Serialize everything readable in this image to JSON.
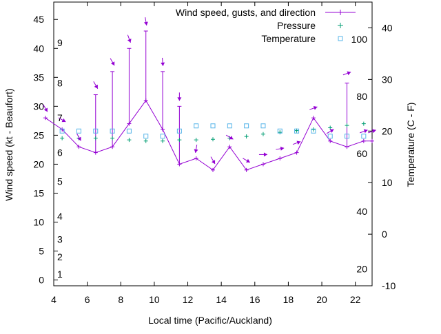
{
  "chart_data": {
    "type": "line",
    "xlabel": "Local time (Pacific/Auckland)",
    "ylabel": "Wind speed (kt - Beaufort)",
    "y2label": "Temperature (C - F)",
    "xlim": [
      4,
      23
    ],
    "ylim": [
      -1,
      48
    ],
    "y2lim": [
      -10,
      45
    ],
    "x_ticks": [
      4,
      6,
      8,
      10,
      12,
      14,
      16,
      18,
      20,
      22
    ],
    "y_ticks": [
      0,
      5,
      10,
      15,
      20,
      25,
      30,
      35,
      40,
      45
    ],
    "y2_ticks": [
      -10,
      0,
      10,
      20,
      30,
      40
    ],
    "beaufort_labels": [
      {
        "label": "1",
        "at_kt": 1
      },
      {
        "label": "2",
        "at_kt": 4
      },
      {
        "label": "3",
        "at_kt": 7
      },
      {
        "label": "4",
        "at_kt": 11
      },
      {
        "label": "5",
        "at_kt": 17
      },
      {
        "label": "6",
        "at_kt": 22
      },
      {
        "label": "7",
        "at_kt": 28
      },
      {
        "label": "8",
        "at_kt": 34
      },
      {
        "label": "9",
        "at_kt": 41
      }
    ],
    "fahrenheit_labels": [
      {
        "label": "20",
        "at_c": -6.7
      },
      {
        "label": "40",
        "at_c": 4.4
      },
      {
        "label": "60",
        "at_c": 15.6
      },
      {
        "label": "80",
        "at_c": 26.7
      },
      {
        "label": "100",
        "at_c": 37.8
      }
    ],
    "legend": {
      "position": "top-right",
      "entries": [
        "Wind speed, gusts, and direction",
        "Pressure",
        "Temperature"
      ]
    },
    "colors": {
      "wind": "#9400d3",
      "pressure": "#009e73",
      "temperature": "#56b4e9",
      "axis": "#000000"
    },
    "series": [
      {
        "name": "Wind speed, gusts, and direction",
        "x": [
          3.5,
          4.5,
          5.5,
          6.5,
          7.5,
          8.5,
          9.5,
          10.5,
          11.5,
          12.5,
          13.5,
          14.5,
          15.5,
          16.5,
          17.5,
          18.5,
          19.5,
          20.5,
          21.5,
          22.5,
          23
        ],
        "speed": [
          28,
          26,
          23,
          22,
          23,
          27,
          31,
          26,
          20,
          21,
          19,
          23,
          19,
          20,
          21,
          22,
          28,
          24,
          23,
          24,
          24
        ],
        "gust": [
          28,
          26,
          23,
          32,
          36,
          40,
          43,
          36,
          30,
          21,
          19,
          23,
          19,
          20,
          21,
          22,
          28,
          24,
          34,
          24,
          24
        ],
        "direction_deg": [
          330,
          300,
          330,
          330,
          330,
          340,
          350,
          355,
          0,
          10,
          330,
          300,
          300,
          270,
          260,
          250,
          250,
          240,
          250,
          250,
          250
        ]
      },
      {
        "name": "Pressure",
        "x": [
          4.5,
          5.5,
          6.5,
          7.5,
          8.5,
          9.5,
          10.5,
          11.5,
          12.5,
          13.5,
          14.5,
          15.5,
          16.5,
          17.5,
          18.5,
          19.5,
          20.5,
          21.5,
          22.5
        ],
        "y": [
          24.5,
          24.5,
          24.5,
          24.5,
          24.2,
          24.0,
          24.0,
          24.2,
          24.2,
          24.3,
          24.5,
          24.8,
          25.2,
          25.5,
          25.8,
          26.0,
          26.3,
          26.7,
          27.0
        ]
      },
      {
        "name": "Temperature",
        "x": [
          4.5,
          5.5,
          6.5,
          7.5,
          8.5,
          9.5,
          10.5,
          11.5,
          12.5,
          13.5,
          14.5,
          15.5,
          16.5,
          17.5,
          18.5,
          19.5,
          20.5,
          21.5,
          22.5
        ],
        "y": [
          20,
          20,
          20,
          20,
          20,
          19,
          19,
          20,
          21,
          21,
          21,
          21,
          21,
          20,
          20,
          20,
          19,
          19,
          19
        ]
      }
    ]
  }
}
